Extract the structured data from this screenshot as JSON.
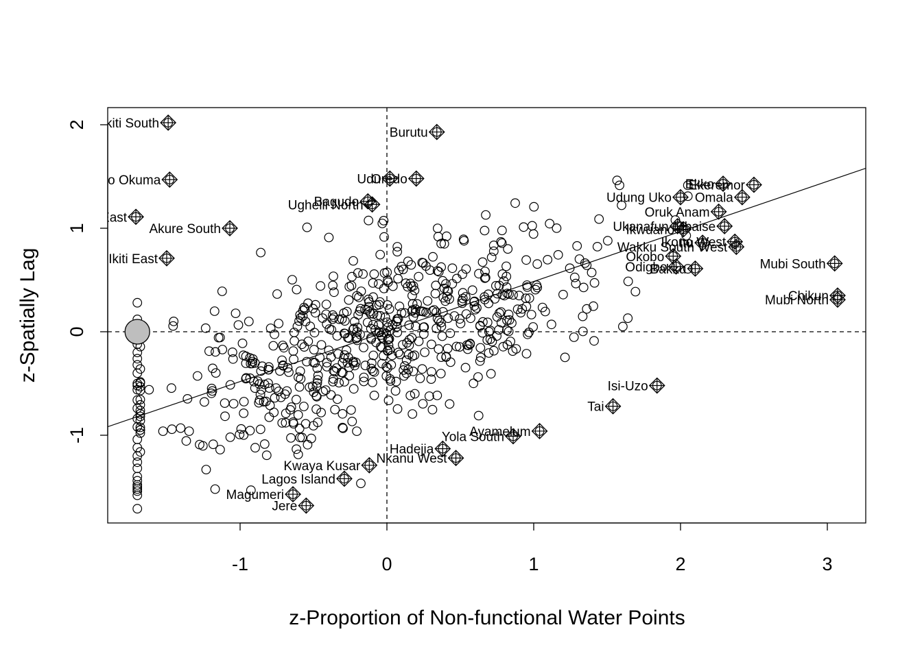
{
  "chart_data": {
    "type": "scatter",
    "title": "",
    "xlabel": "z-Proportion of Non-functional Water Points",
    "ylabel": "z-Spatially Lag",
    "xlim": [
      -1.9,
      3.27
    ],
    "ylim": [
      -1.85,
      2.17
    ],
    "xticks": [
      -1,
      0,
      1,
      2,
      3
    ],
    "yticks": [
      -1,
      0,
      1,
      2
    ],
    "reference_lines": {
      "x": 0,
      "y": 0,
      "style": "dashed"
    },
    "regression_line": {
      "intercept": 0.0,
      "slope": 0.483
    },
    "grid": false,
    "legend": "none",
    "highlighted_point": {
      "x": -1.7,
      "y": 0.0,
      "fill": "#bebebe"
    },
    "influential_points": [
      {
        "label": "Ekiti South",
        "x": -1.49,
        "y": 2.02
      },
      {
        "label": "Burutu",
        "x": 0.34,
        "y": 1.93
      },
      {
        "label": "Udu",
        "x": 0.02,
        "y": 1.48
      },
      {
        "label": "Oredo",
        "x": 0.2,
        "y": 1.48
      },
      {
        "label": "Okeigbo Okuma",
        "x": -1.48,
        "y": 1.47
      },
      {
        "label": "Bagudo",
        "x": -0.13,
        "y": 1.26
      },
      {
        "label": "Ughelli North",
        "x": -0.1,
        "y": 1.23
      },
      {
        "label": "Ekiti East",
        "x": -1.71,
        "y": 1.11
      },
      {
        "label": "Akure South",
        "x": -1.07,
        "y": 1.0
      },
      {
        "label": "Ikiti East",
        "x": -1.5,
        "y": 0.71
      },
      {
        "label": "Ekeremor",
        "x": 2.5,
        "y": 1.42
      },
      {
        "label": "Ekko",
        "x": 2.29,
        "y": 1.43
      },
      {
        "label": "Omala",
        "x": 2.42,
        "y": 1.3
      },
      {
        "label": "Udung Uko",
        "x": 2.0,
        "y": 1.3
      },
      {
        "label": "Oruk Anam",
        "x": 2.26,
        "y": 1.16
      },
      {
        "label": "Mbaise",
        "x": 2.3,
        "y": 1.02
      },
      {
        "label": "Ukanafun",
        "x": 1.98,
        "y": 1.02
      },
      {
        "label": "Ikwuano",
        "x": 2.02,
        "y": 0.99
      },
      {
        "label": "Ikono West",
        "x": 2.37,
        "y": 0.87
      },
      {
        "label": "Wakku South West",
        "x": 2.38,
        "y": 0.82
      },
      {
        "label": "Itu",
        "x": 2.15,
        "y": 0.86
      },
      {
        "label": "Okobo",
        "x": 1.95,
        "y": 0.73
      },
      {
        "label": "Odigbo",
        "x": 1.97,
        "y": 0.63
      },
      {
        "label": "Bakku",
        "x": 2.1,
        "y": 0.61
      },
      {
        "label": "Mubi South",
        "x": 3.05,
        "y": 0.66
      },
      {
        "label": "Mubi North",
        "x": 3.07,
        "y": 0.31
      },
      {
        "label": "Chikun",
        "x": 3.07,
        "y": 0.35
      },
      {
        "label": "Isi-Uzo",
        "x": 1.84,
        "y": -0.52
      },
      {
        "label": "Tai",
        "x": 1.54,
        "y": -0.72
      },
      {
        "label": "Ayamelum",
        "x": 1.04,
        "y": -0.96
      },
      {
        "label": "Yola South",
        "x": 0.86,
        "y": -1.01
      },
      {
        "label": "Hadejia",
        "x": 0.38,
        "y": -1.13
      },
      {
        "label": "Nkanu West",
        "x": 0.47,
        "y": -1.22
      },
      {
        "label": "Kwaya Kusar",
        "x": -0.12,
        "y": -1.29
      },
      {
        "label": "Lagos Island",
        "x": -0.29,
        "y": -1.42
      },
      {
        "label": "Magumeri",
        "x": -0.64,
        "y": -1.57
      },
      {
        "label": "Jere",
        "x": -0.55,
        "y": -1.68
      }
    ]
  }
}
